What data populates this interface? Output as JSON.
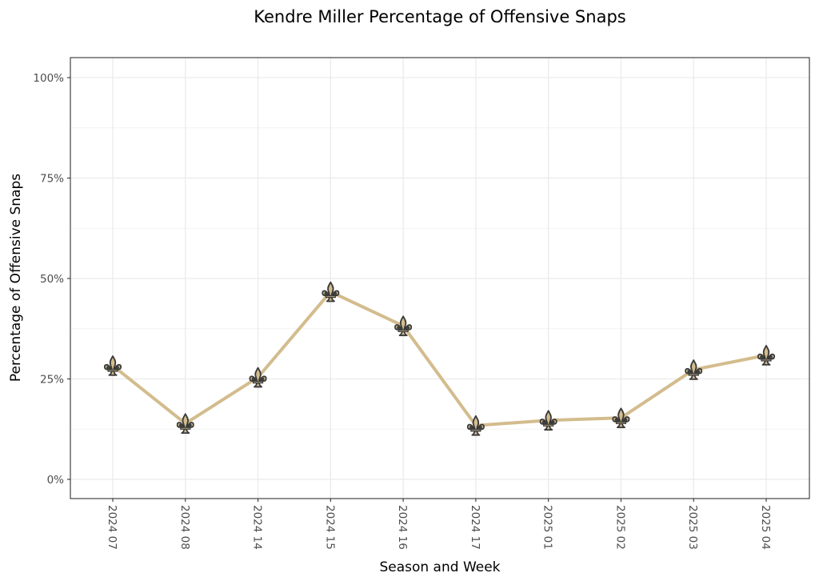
{
  "chart_data": {
    "type": "line",
    "title": "Kendre Miller Percentage of Offensive Snaps",
    "xlabel": "Season and Week",
    "ylabel": "Percentage of Offensive Snaps",
    "categories": [
      "2024 07",
      "2024 08",
      "2024 14",
      "2024 15",
      "2024 16",
      "2024 17",
      "2025 01",
      "2025 02",
      "2025 03",
      "2025 04"
    ],
    "series": [
      {
        "name": "Kendre Miller",
        "values": [
          28.3,
          13.9,
          25.4,
          46.7,
          38.2,
          13.4,
          14.7,
          15.3,
          27.3,
          30.9
        ],
        "color": "#D3BC8D",
        "marker": "fleur-de-lis",
        "marker_fill": "#D3BC8D",
        "marker_outline": "#3a3a3a"
      }
    ],
    "ylim": [
      -4.5,
      105
    ],
    "yticks": [
      0,
      25,
      50,
      75,
      100
    ],
    "ytick_labels": [
      "0%",
      "25%",
      "50%",
      "75%",
      "100%"
    ],
    "grid": true,
    "legend": "none",
    "x_tick_rotation": "vertical (90° clockwise)"
  }
}
